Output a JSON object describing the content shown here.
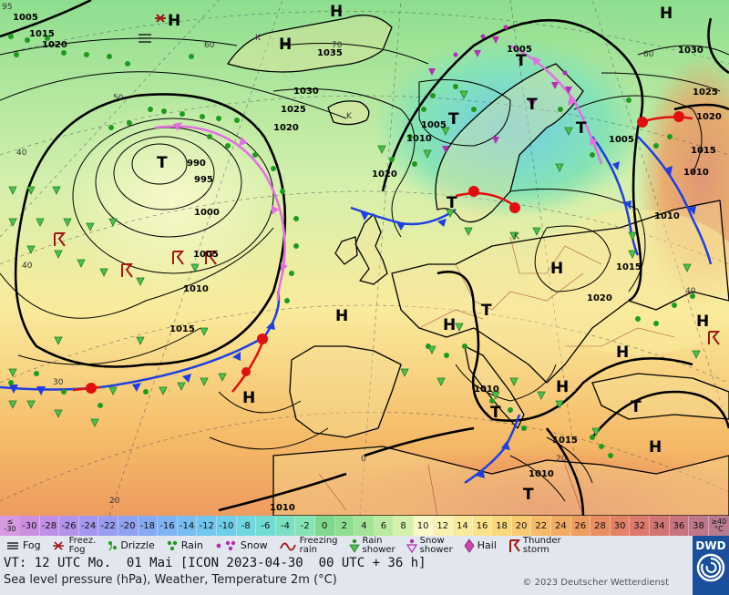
{
  "legend_items": [
    {
      "icon": "fog-icon",
      "label": "Fog"
    },
    {
      "icon": "freezing-fog-icon",
      "label": "Freez.\nFog"
    },
    {
      "icon": "drizzle-icon",
      "label": "Drizzle"
    },
    {
      "icon": "rain-icon",
      "label": "Rain"
    },
    {
      "icon": "snow-icon",
      "label": "Snow"
    },
    {
      "icon": "freezing-rain-icon",
      "label": "Freezing\nrain"
    },
    {
      "icon": "rain-shower-icon",
      "label": "Rain\nshower"
    },
    {
      "icon": "snow-shower-icon",
      "label": "Snow\nshower"
    },
    {
      "icon": "hail-icon",
      "label": "Hail"
    },
    {
      "icon": "thunderstorm-icon",
      "label": "Thunder\nstorm"
    }
  ],
  "colorbar": {
    "low_end": "≤\n-30",
    "high_end": "≥40\n°C",
    "steps": [
      {
        "label": "-30",
        "color": "#cc8fe0"
      },
      {
        "label": "-28",
        "color": "#bf90e6"
      },
      {
        "label": "-26",
        "color": "#b393ea"
      },
      {
        "label": "-24",
        "color": "#a697ee"
      },
      {
        "label": "-22",
        "color": "#9a9cf0"
      },
      {
        "label": "-20",
        "color": "#8fa3f2"
      },
      {
        "label": "-18",
        "color": "#86abf3"
      },
      {
        "label": "-16",
        "color": "#7fb4f3"
      },
      {
        "label": "-14",
        "color": "#78bef2"
      },
      {
        "label": "-12",
        "color": "#72c7ee"
      },
      {
        "label": "-10",
        "color": "#70cfe8"
      },
      {
        "label": "-8",
        "color": "#70d6df"
      },
      {
        "label": "-6",
        "color": "#73dcd2"
      },
      {
        "label": "-4",
        "color": "#7be0c3"
      },
      {
        "label": "-2",
        "color": "#86e3b4"
      },
      {
        "label": "0",
        "color": "#7fd98d"
      },
      {
        "label": "2",
        "color": "#8ede8f"
      },
      {
        "label": "4",
        "color": "#a3e497"
      },
      {
        "label": "6",
        "color": "#bbeaa1"
      },
      {
        "label": "8",
        "color": "#d3f0ad"
      },
      {
        "label": "10",
        "color": "#f8f8c8"
      },
      {
        "label": "12",
        "color": "#f9f2b0"
      },
      {
        "label": "14",
        "color": "#faeb9c"
      },
      {
        "label": "16",
        "color": "#fae28a"
      },
      {
        "label": "18",
        "color": "#f9d77c"
      },
      {
        "label": "20",
        "color": "#f8ca71"
      },
      {
        "label": "22",
        "color": "#f5bb68"
      },
      {
        "label": "24",
        "color": "#f2ab62"
      },
      {
        "label": "26",
        "color": "#ee9c60"
      },
      {
        "label": "28",
        "color": "#e98e62"
      },
      {
        "label": "30",
        "color": "#e38266"
      },
      {
        "label": "32",
        "color": "#db796d"
      },
      {
        "label": "34",
        "color": "#d27575"
      },
      {
        "label": "36",
        "color": "#c8747f"
      },
      {
        "label": "38",
        "color": "#be778a"
      }
    ]
  },
  "footer": {
    "valid_time": "VT: 12 UTC Mo.  01 Mai [ICON 2023-04-30  00 UTC + 36 h]",
    "description": "Sea level pressure (hPa), Weather, Temperature 2m (°C)",
    "copyright": "© 2023 Deutscher Wetterdienst"
  },
  "logo": {
    "text": "DWD"
  },
  "map": {
    "pressure_labels": [
      {
        "text": "995"
      },
      {
        "text": "990"
      },
      {
        "text": "1000"
      },
      {
        "text": "1005"
      },
      {
        "text": "1010"
      },
      {
        "text": "1015"
      },
      {
        "text": "1020"
      },
      {
        "text": "1025"
      },
      {
        "text": "1030"
      },
      {
        "text": "1035"
      },
      {
        "text": "1005"
      },
      {
        "text": "1010"
      },
      {
        "text": "1015"
      },
      {
        "text": "1020"
      },
      {
        "text": "1025"
      },
      {
        "text": "1030"
      },
      {
        "text": "1005"
      },
      {
        "text": "1010"
      },
      {
        "text": "1015"
      },
      {
        "text": "1010"
      },
      {
        "text": "1015"
      },
      {
        "text": "1010"
      },
      {
        "text": "1015"
      },
      {
        "text": "1020"
      },
      {
        "text": "1010"
      },
      {
        "text": "1015"
      },
      {
        "text": "1020"
      },
      {
        "text": "1010"
      },
      {
        "text": "1010"
      },
      {
        "text": "1015"
      },
      {
        "text": "1005"
      },
      {
        "text": "1010"
      },
      {
        "text": "1005"
      },
      {
        "text": "1015"
      },
      {
        "text": "1020"
      },
      {
        "text": "1005"
      },
      {
        "text": "1020"
      },
      {
        "text": "1015"
      },
      {
        "text": "1010"
      }
    ],
    "centers": [
      {
        "text": "H"
      },
      {
        "text": "H"
      },
      {
        "text": "H"
      },
      {
        "text": "H"
      },
      {
        "text": "T"
      },
      {
        "text": "T"
      },
      {
        "text": "T"
      },
      {
        "text": "T"
      },
      {
        "text": "H"
      },
      {
        "text": "H"
      },
      {
        "text": "H"
      },
      {
        "text": "H"
      },
      {
        "text": "T"
      },
      {
        "text": "H"
      },
      {
        "text": "H"
      },
      {
        "text": "T"
      },
      {
        "text": "H"
      },
      {
        "text": "T"
      },
      {
        "text": "T"
      },
      {
        "text": "H"
      },
      {
        "text": "H"
      },
      {
        "text": "T"
      },
      {
        "text": "T"
      }
    ],
    "grid_labels": [
      {
        "text": "95"
      },
      {
        "text": "60"
      },
      {
        "text": "50"
      },
      {
        "text": "40"
      },
      {
        "text": "30"
      },
      {
        "text": "20"
      },
      {
        "text": "0"
      },
      {
        "text": "20"
      },
      {
        "text": "40"
      },
      {
        "text": "60"
      },
      {
        "text": "70"
      },
      {
        "text": "40"
      },
      {
        "text": "50"
      },
      {
        "text": "60"
      },
      {
        "text": "K"
      },
      {
        "text": "K"
      },
      {
        "text": "K"
      }
    ],
    "colors": {
      "cold_front": "#1f3fe0",
      "warm_front": "#e01010",
      "occlusion": "#e070e0",
      "isobar": "#000000",
      "rain_symbol": "#1f9a1f",
      "snow_symbol": "#b030b0",
      "thunder_symbol": "#a01818"
    }
  }
}
